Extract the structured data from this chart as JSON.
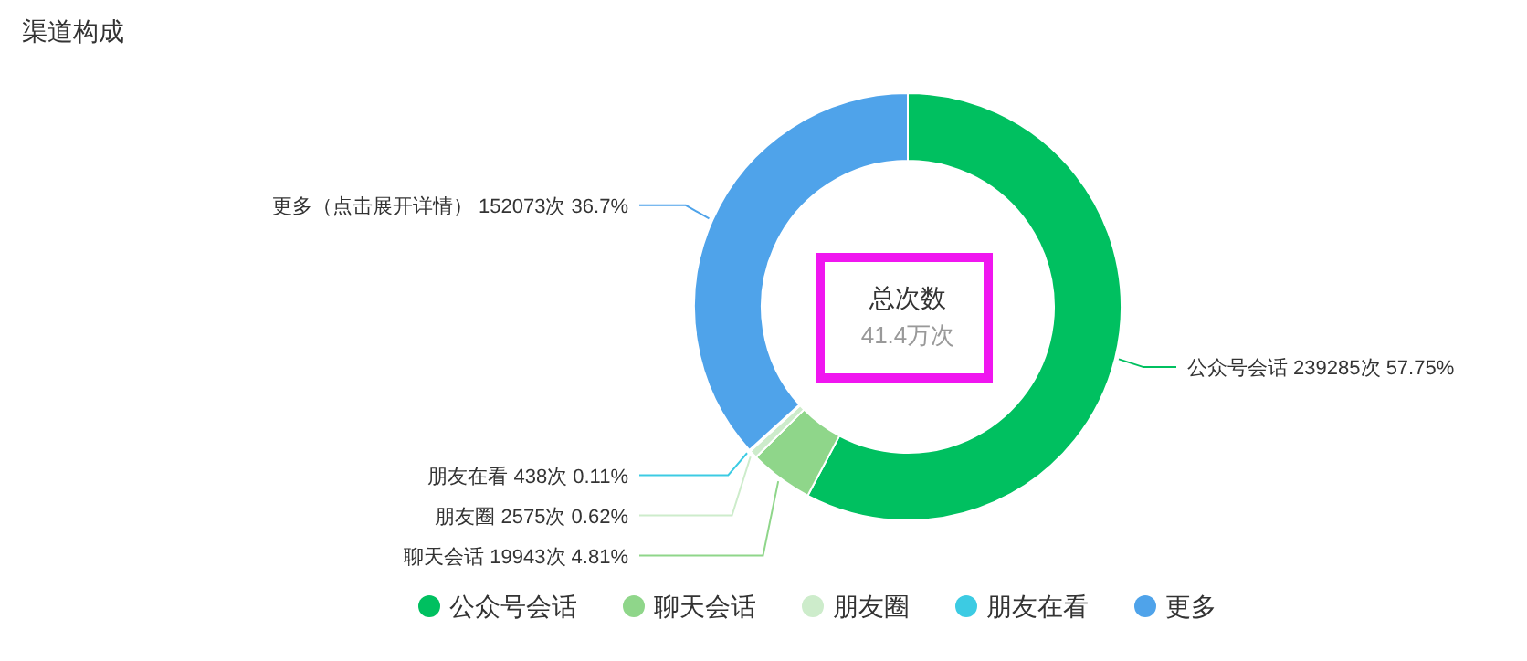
{
  "chart_data": {
    "type": "donut",
    "title": "渠道构成",
    "categories": [
      "公众号会话",
      "聊天会话",
      "朋友圈",
      "朋友在看",
      "更多"
    ],
    "values": [
      239285,
      19943,
      2575,
      438,
      152073
    ],
    "colors": [
      "#00c060",
      "#8fd68a",
      "#cdeccb",
      "#3ccbe3",
      "#4fa3ea"
    ],
    "value_labels": [
      "公众号会话 239285次 57.75%",
      "聊天会话 19943次 4.81%",
      "朋友圈 2575次 0.62%",
      "朋友在看 438次 0.11%",
      "更多（点击展开详情） 152073次 36.7%"
    ],
    "annotations": [
      "总次数",
      "41.4万次"
    ],
    "legend": "bottom"
  }
}
